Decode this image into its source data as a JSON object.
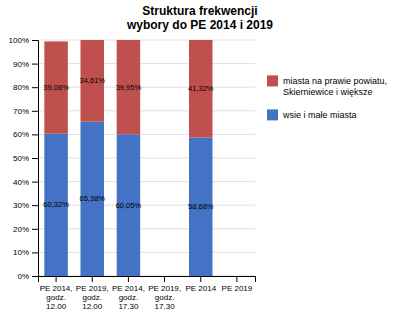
{
  "chart_data": {
    "type": "bar",
    "stacked": true,
    "title": "Struktura frekwencji\nwybory do PE 2014 i 2019",
    "categories": [
      "PE 2014,\ngodz.\n12.00",
      "PE 2019,\ngodz.\n12.00",
      "PE 2014,\ngodz.\n17.30",
      "PE 2019,\ngodz.\n17.30",
      "PE 2014",
      "PE 2019"
    ],
    "series": [
      {
        "name": "wsie i małe miasta",
        "color": "#4472C4",
        "values": [
          60.32,
          65.38,
          60.05,
          0,
          58.68,
          0
        ],
        "value_labels": [
          "60,32%",
          "65,38%",
          "60,05%",
          null,
          "58,68%",
          null
        ]
      },
      {
        "name": "miasta na prawie powiatu,\nSkierniewice i większe",
        "color": "#C0504D",
        "values": [
          39.08,
          34.61,
          39.95,
          0,
          41.32,
          0
        ],
        "value_labels": [
          "39,08%",
          "34,61%",
          "39,95%",
          null,
          "41,32%",
          null
        ]
      }
    ],
    "data_labels": true,
    "ylim": [
      0,
      100
    ],
    "yticks": [
      {
        "value": 0,
        "label": "0%"
      },
      {
        "value": 10,
        "label": "10%"
      },
      {
        "value": 20,
        "label": "20%"
      },
      {
        "value": 30,
        "label": "30%"
      },
      {
        "value": 40,
        "label": "40%"
      },
      {
        "value": 50,
        "label": "50%"
      },
      {
        "value": 60,
        "label": "60%"
      },
      {
        "value": 70,
        "label": "70%"
      },
      {
        "value": 80,
        "label": "80%"
      },
      {
        "value": 90,
        "label": "90%"
      },
      {
        "value": 100,
        "label": "100%"
      }
    ],
    "grid": true,
    "legend": "right"
  }
}
